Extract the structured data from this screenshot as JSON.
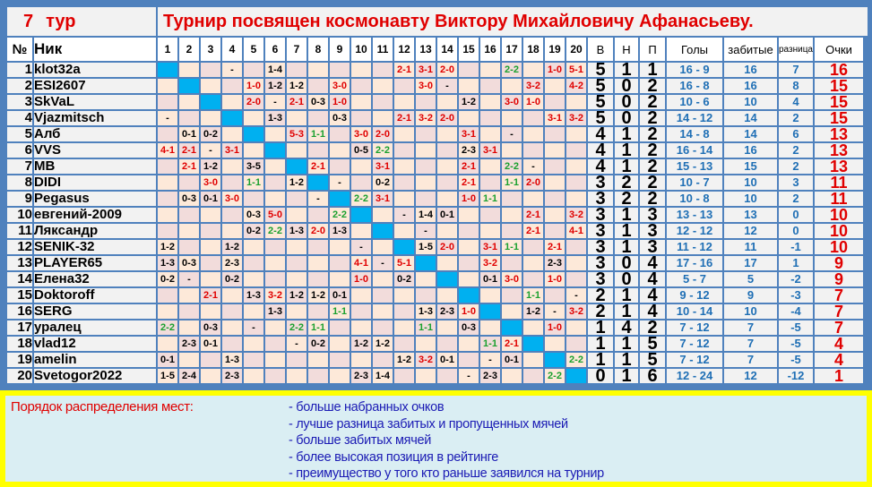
{
  "header": {
    "round_number": "7",
    "round_label": "тур",
    "title": "Турнир посвящен космонавту Виктору Михайловичу Афанасьеву."
  },
  "columns": {
    "num": "№",
    "nick": "Ник",
    "rounds": [
      "1",
      "2",
      "3",
      "4",
      "5",
      "6",
      "7",
      "8",
      "9",
      "10",
      "11",
      "12",
      "13",
      "14",
      "15",
      "16",
      "17",
      "18",
      "19",
      "20"
    ],
    "wins": "В",
    "draws": "Н",
    "losses": "П",
    "goals": "Голы",
    "scored": "забитые",
    "diff": "разница",
    "points": "Очки"
  },
  "colors": {
    "win": "#e00000",
    "loss": "#000000",
    "draw": "#1aa02e",
    "self": "#00b0f0",
    "border": "#4f81bd",
    "footer": "#ffff00"
  },
  "players": [
    {
      "pos": "1",
      "name": "klot32a",
      "results": [
        null,
        "",
        "",
        "-",
        "",
        "1-4",
        "",
        "",
        "",
        "",
        "",
        "2-1",
        "3-1",
        "2-0",
        "",
        "",
        "2-2",
        "",
        "1-0",
        "5-1"
      ],
      "w": "5",
      "d": "1",
      "l": "1",
      "goals": "16 - 9",
      "scored": "16",
      "diff": "7",
      "points": "16"
    },
    {
      "pos": "2",
      "name": "ESI2607",
      "results": [
        "",
        null,
        "",
        "",
        "1-0",
        "1-2",
        "1-2",
        "",
        "3-0",
        "",
        "",
        "",
        "3-0",
        "-",
        "",
        "",
        "",
        "3-2",
        "",
        "4-2"
      ],
      "w": "5",
      "d": "0",
      "l": "2",
      "goals": "16 - 8",
      "scored": "16",
      "diff": "8",
      "points": "15"
    },
    {
      "pos": "3",
      "name": "SkVaL",
      "results": [
        "",
        "",
        null,
        "",
        "2-0",
        "-",
        "2-1",
        "0-3",
        "1-0",
        "",
        "",
        "",
        "",
        "",
        "1-2",
        "",
        "3-0",
        "1-0",
        "",
        ""
      ],
      "w": "5",
      "d": "0",
      "l": "2",
      "goals": "10 - 6",
      "scored": "10",
      "diff": "4",
      "points": "15"
    },
    {
      "pos": "4",
      "name": "Vjazmitsch",
      "results": [
        "-",
        "",
        "",
        null,
        "",
        "1-3",
        "",
        "",
        "0-3",
        "",
        "",
        "2-1",
        "3-2",
        "2-0",
        "",
        "",
        "",
        "",
        "3-1",
        "3-2"
      ],
      "w": "5",
      "d": "0",
      "l": "2",
      "goals": "14 - 12",
      "scored": "14",
      "diff": "2",
      "points": "15"
    },
    {
      "pos": "5",
      "name": "Алб",
      "results": [
        "",
        "0-1",
        "0-2",
        "",
        null,
        "",
        "5-3",
        "1-1",
        "",
        "3-0",
        "2-0",
        "",
        "",
        "",
        "3-1",
        "",
        "-",
        "",
        "",
        ""
      ],
      "w": "4",
      "d": "1",
      "l": "2",
      "goals": "14 - 8",
      "scored": "14",
      "diff": "6",
      "points": "13"
    },
    {
      "pos": "6",
      "name": "VVS",
      "results": [
        "4-1",
        "2-1",
        "-",
        "3-1",
        "",
        null,
        "",
        "",
        "",
        "0-5",
        "2-2",
        "",
        "",
        "",
        "2-3",
        "3-1",
        "",
        "",
        "",
        ""
      ],
      "w": "4",
      "d": "1",
      "l": "2",
      "goals": "16 - 14",
      "scored": "16",
      "diff": "2",
      "points": "13"
    },
    {
      "pos": "7",
      "name": "MB",
      "results": [
        "",
        "2-1",
        "1-2",
        "",
        "3-5",
        "",
        null,
        "2-1",
        "",
        "",
        "3-1",
        "",
        "",
        "",
        "2-1",
        "",
        "2-2",
        "-",
        "",
        ""
      ],
      "w": "4",
      "d": "1",
      "l": "2",
      "goals": "15 - 13",
      "scored": "15",
      "diff": "2",
      "points": "13"
    },
    {
      "pos": "8",
      "name": "DIDI",
      "results": [
        "",
        "",
        "3-0",
        "",
        "1-1",
        "",
        "1-2",
        null,
        "-",
        "",
        "0-2",
        "",
        "",
        "",
        "2-1",
        "",
        "1-1",
        "2-0",
        "",
        ""
      ],
      "w": "3",
      "d": "2",
      "l": "2",
      "goals": "10 - 7",
      "scored": "10",
      "diff": "3",
      "points": "11"
    },
    {
      "pos": "9",
      "name": "Pegasus",
      "results": [
        "",
        "0-3",
        "0-1",
        "3-0",
        "",
        "",
        "",
        "-",
        null,
        "2-2",
        "3-1",
        "",
        "",
        "",
        "1-0",
        "1-1",
        "",
        "",
        "",
        ""
      ],
      "w": "3",
      "d": "2",
      "l": "2",
      "goals": "10 - 8",
      "scored": "10",
      "diff": "2",
      "points": "11"
    },
    {
      "pos": "10",
      "name": "евгений-2009",
      "results": [
        "",
        "",
        "",
        "",
        "0-3",
        "5-0",
        "",
        "",
        "2-2",
        null,
        "",
        "-",
        "1-4",
        "0-1",
        "",
        "",
        "",
        "2-1",
        "",
        "3-2"
      ],
      "w": "3",
      "d": "1",
      "l": "3",
      "goals": "13 - 13",
      "scored": "13",
      "diff": "0",
      "points": "10"
    },
    {
      "pos": "11",
      "name": "Ляксандр",
      "results": [
        "",
        "",
        "",
        "",
        "0-2",
        "2-2",
        "1-3",
        "2-0",
        "1-3",
        "",
        null,
        "",
        "-",
        "",
        "",
        "",
        "",
        "2-1",
        "",
        "4-1"
      ],
      "w": "3",
      "d": "1",
      "l": "3",
      "goals": "12 - 12",
      "scored": "12",
      "diff": "0",
      "points": "10"
    },
    {
      "pos": "12",
      "name": "SENIK-32",
      "results": [
        "1-2",
        "",
        "",
        "1-2",
        "",
        "",
        "",
        "",
        "",
        "-",
        "",
        null,
        "1-5",
        "2-0",
        "",
        "3-1",
        "1-1",
        "",
        "2-1",
        ""
      ],
      "w": "3",
      "d": "1",
      "l": "3",
      "goals": "11 - 12",
      "scored": "11",
      "diff": "-1",
      "points": "10"
    },
    {
      "pos": "13",
      "name": "PLAYER65",
      "results": [
        "1-3",
        "0-3",
        "",
        "2-3",
        "",
        "",
        "",
        "",
        "",
        "4-1",
        "-",
        "5-1",
        null,
        "",
        "",
        "3-2",
        "",
        "",
        "2-3",
        ""
      ],
      "w": "3",
      "d": "0",
      "l": "4",
      "goals": "17 - 16",
      "scored": "17",
      "diff": "1",
      "points": "9"
    },
    {
      "pos": "14",
      "name": "Елена32",
      "results": [
        "0-2",
        "-",
        "",
        "0-2",
        "",
        "",
        "",
        "",
        "",
        "1-0",
        "",
        "0-2",
        "",
        null,
        "",
        "0-1",
        "3-0",
        "",
        "1-0",
        ""
      ],
      "w": "3",
      "d": "0",
      "l": "4",
      "goals": "5 - 7",
      "scored": "5",
      "diff": "-2",
      "points": "9"
    },
    {
      "pos": "15",
      "name": "Doktoroff",
      "results": [
        "",
        "",
        "2-1",
        "",
        "1-3",
        "3-2",
        "1-2",
        "1-2",
        "0-1",
        "",
        "",
        "",
        "",
        "",
        null,
        "",
        "",
        "1-1",
        "",
        "-"
      ],
      "w": "2",
      "d": "1",
      "l": "4",
      "goals": "9 - 12",
      "scored": "9",
      "diff": "-3",
      "points": "7"
    },
    {
      "pos": "16",
      "name": "SERG",
      "results": [
        "",
        "",
        "",
        "",
        "",
        "1-3",
        "",
        "",
        "1-1",
        "",
        "",
        "",
        "1-3",
        "2-3",
        "1-0",
        null,
        "",
        "1-2",
        "-",
        "3-2"
      ],
      "w": "2",
      "d": "1",
      "l": "4",
      "goals": "10 - 14",
      "scored": "10",
      "diff": "-4",
      "points": "7"
    },
    {
      "pos": "17",
      "name": "уралец",
      "results": [
        "2-2",
        "",
        "0-3",
        "",
        "-",
        "",
        "2-2",
        "1-1",
        "",
        "",
        "",
        "",
        "1-1",
        "",
        "0-3",
        "",
        null,
        "",
        "1-0",
        ""
      ],
      "w": "1",
      "d": "4",
      "l": "2",
      "goals": "7 - 12",
      "scored": "7",
      "diff": "-5",
      "points": "7"
    },
    {
      "pos": "18",
      "name": "vlad12",
      "results": [
        "",
        "2-3",
        "0-1",
        "",
        "",
        "",
        "-",
        "0-2",
        "",
        "1-2",
        "1-2",
        "",
        "",
        "",
        "",
        "1-1",
        "2-1",
        null,
        "",
        ""
      ],
      "w": "1",
      "d": "1",
      "l": "5",
      "goals": "7 - 12",
      "scored": "7",
      "diff": "-5",
      "points": "4"
    },
    {
      "pos": "19",
      "name": "amelin",
      "results": [
        "0-1",
        "",
        "",
        "1-3",
        "",
        "",
        "",
        "",
        "",
        "",
        "",
        "1-2",
        "3-2",
        "0-1",
        "",
        "-",
        "0-1",
        "",
        null,
        "2-2"
      ],
      "w": "1",
      "d": "1",
      "l": "5",
      "goals": "7 - 12",
      "scored": "7",
      "diff": "-5",
      "points": "4"
    },
    {
      "pos": "20",
      "name": "Svetogor2022",
      "results": [
        "1-5",
        "2-4",
        "",
        "2-3",
        "",
        "",
        "",
        "",
        "",
        "2-3",
        "1-4",
        "",
        "",
        "",
        "-",
        "2-3",
        "",
        "",
        "2-2",
        null
      ],
      "w": "0",
      "d": "1",
      "l": "6",
      "goals": "12 - 24",
      "scored": "12",
      "diff": "-12",
      "points": "1"
    }
  ],
  "footer": {
    "label": "Порядок распределения мест:",
    "rules": [
      "- больше набранных очков",
      "- лучше разница забитых и пропущенных мячей",
      "- больше забитых мячей",
      "- более высокая позиция в рейтинге",
      "- преимущество у того кто раньше заявился на турнир"
    ]
  }
}
